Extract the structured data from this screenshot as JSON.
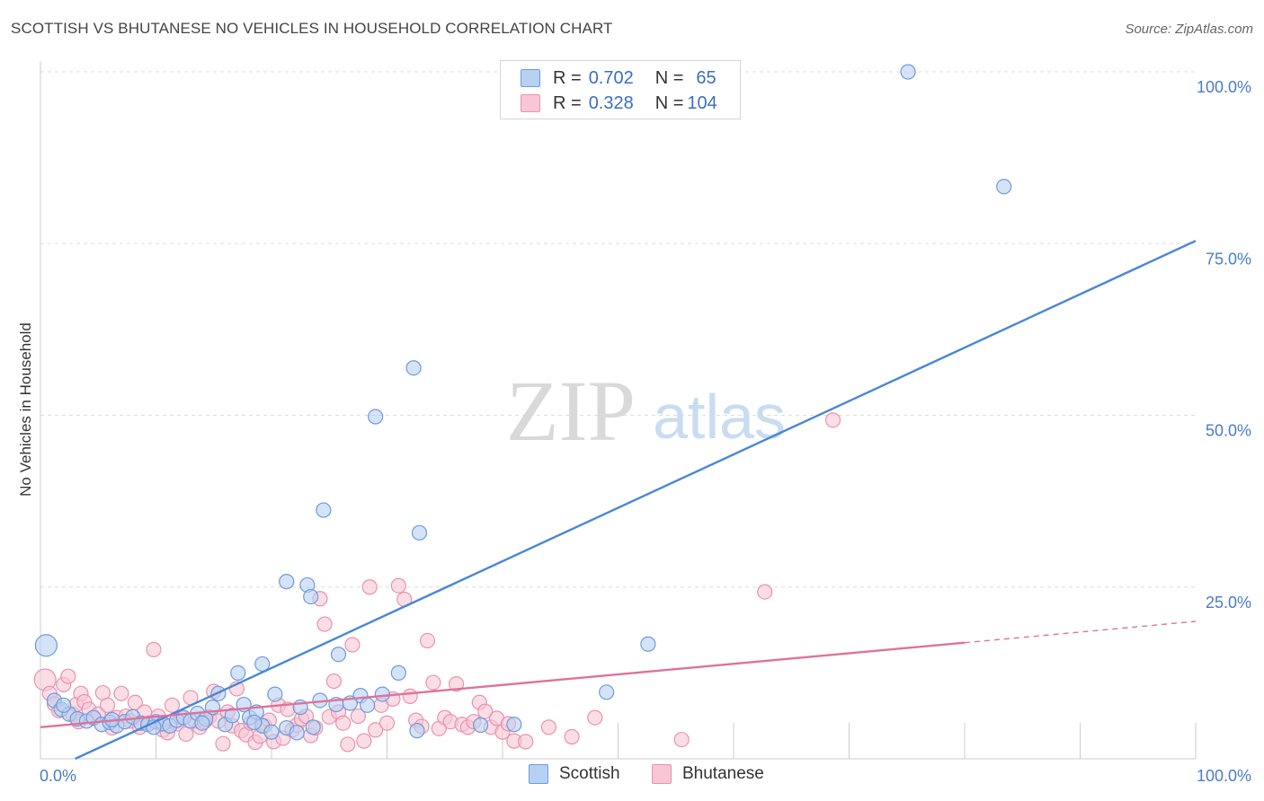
{
  "title": "SCOTTISH VS BHUTANESE NO VEHICLES IN HOUSEHOLD CORRELATION CHART",
  "source": "Source: ZipAtlas.com",
  "watermark": {
    "zip": "ZIP",
    "atlas": "atlas"
  },
  "legend": {
    "r_label": "R =",
    "n_label": "N =",
    "rows": [
      {
        "name": "Scottish",
        "r": "0.702",
        "n": "65",
        "fill": "#b8d1f2",
        "stroke": "#6e9bdb"
      },
      {
        "name": "Bhutanese",
        "r": "0.328",
        "n": "104",
        "fill": "#f8c6d5",
        "stroke": "#e893ae"
      }
    ]
  },
  "chart_data": {
    "type": "scatter",
    "title": "SCOTTISH VS BHUTANESE NO VEHICLES IN HOUSEHOLD CORRELATION CHART",
    "xlabel": "",
    "ylabel": "No Vehicles in Household",
    "xlim": [
      0,
      100
    ],
    "ylim": [
      0,
      100
    ],
    "x_tick_labels": [
      {
        "value": 0,
        "label": "0.0%"
      },
      {
        "value": 100,
        "label": "100.0%"
      }
    ],
    "y_tick_labels": [
      {
        "value": 100,
        "label": "100.0%"
      },
      {
        "value": 75,
        "label": "75.0%"
      },
      {
        "value": 50,
        "label": "50.0%"
      },
      {
        "value": 25,
        "label": "25.0%"
      }
    ],
    "series": [
      {
        "name": "Scottish",
        "color": "#4a86d8",
        "fill": "#b8d1f2",
        "regression": {
          "x0": 3,
          "y0": 0,
          "x1": 100,
          "y1": 75.4,
          "dashed_to": null
        },
        "points": [
          [
            0.5,
            16.5
          ],
          [
            1.2,
            8.5
          ],
          [
            1.8,
            7.2
          ],
          [
            2.5,
            6.5
          ],
          [
            3.2,
            5.8
          ],
          [
            4.0,
            5.5
          ],
          [
            4.6,
            6.0
          ],
          [
            5.3,
            5.0
          ],
          [
            6.0,
            5.3
          ],
          [
            6.6,
            4.8
          ],
          [
            7.3,
            5.4
          ],
          [
            8.0,
            6.1
          ],
          [
            8.7,
            5.2
          ],
          [
            9.3,
            5.0
          ],
          [
            10.0,
            5.4
          ],
          [
            10.6,
            5.1
          ],
          [
            11.2,
            4.8
          ],
          [
            11.8,
            5.6
          ],
          [
            12.4,
            6.0
          ],
          [
            13.0,
            5.5
          ],
          [
            13.6,
            6.6
          ],
          [
            14.3,
            5.8
          ],
          [
            14.9,
            7.5
          ],
          [
            15.4,
            9.5
          ],
          [
            16.0,
            5.0
          ],
          [
            16.6,
            6.3
          ],
          [
            17.1,
            12.5
          ],
          [
            17.6,
            7.9
          ],
          [
            18.1,
            6.0
          ],
          [
            18.7,
            6.8
          ],
          [
            19.2,
            4.8
          ],
          [
            19.2,
            13.8
          ],
          [
            20.0,
            3.9
          ],
          [
            20.3,
            9.4
          ],
          [
            21.3,
            4.5
          ],
          [
            21.3,
            25.8
          ],
          [
            22.2,
            3.8
          ],
          [
            22.5,
            7.5
          ],
          [
            23.1,
            25.3
          ],
          [
            23.4,
            23.6
          ],
          [
            23.6,
            4.6
          ],
          [
            24.2,
            8.5
          ],
          [
            24.5,
            36.2
          ],
          [
            25.6,
            7.9
          ],
          [
            25.8,
            15.2
          ],
          [
            27.7,
            9.2
          ],
          [
            28.3,
            7.8
          ],
          [
            29.0,
            49.8
          ],
          [
            29.6,
            9.4
          ],
          [
            31.0,
            12.5
          ],
          [
            32.3,
            56.9
          ],
          [
            32.6,
            4.1
          ],
          [
            32.8,
            32.9
          ],
          [
            38.1,
            4.9
          ],
          [
            41.0,
            5.0
          ],
          [
            49.0,
            9.7
          ],
          [
            52.6,
            16.7
          ],
          [
            75.1,
            100
          ],
          [
            83.4,
            83.3
          ],
          [
            2.0,
            7.8
          ],
          [
            6.2,
            5.7
          ],
          [
            9.8,
            4.6
          ],
          [
            14.0,
            5.2
          ],
          [
            18.5,
            5.3
          ],
          [
            26.8,
            8.1
          ]
        ]
      },
      {
        "name": "Bhutanese",
        "color": "#e0719a",
        "fill": "#f8c6d5",
        "regression": {
          "x0": 0,
          "y0": 4.6,
          "x1": 80,
          "y1": 16.9,
          "dashed_to": [
            100,
            20.0
          ]
        },
        "points": [
          [
            0.4,
            11.5
          ],
          [
            0.8,
            9.5
          ],
          [
            1.2,
            8.0
          ],
          [
            1.6,
            7.0
          ],
          [
            2.0,
            10.8
          ],
          [
            2.4,
            12.0
          ],
          [
            2.8,
            6.5
          ],
          [
            3.1,
            7.9
          ],
          [
            3.5,
            9.5
          ],
          [
            3.8,
            8.3
          ],
          [
            4.2,
            7.2
          ],
          [
            4.6,
            5.9
          ],
          [
            5.0,
            6.5
          ],
          [
            5.4,
            9.6
          ],
          [
            5.8,
            7.8
          ],
          [
            6.2,
            4.5
          ],
          [
            6.6,
            6.0
          ],
          [
            7.0,
            9.5
          ],
          [
            7.4,
            6.2
          ],
          [
            7.8,
            5.5
          ],
          [
            8.2,
            8.2
          ],
          [
            8.6,
            4.6
          ],
          [
            9.0,
            6.8
          ],
          [
            9.4,
            5.2
          ],
          [
            9.8,
            15.9
          ],
          [
            10.2,
            6.2
          ],
          [
            10.6,
            4.2
          ],
          [
            11.0,
            3.8
          ],
          [
            11.4,
            7.8
          ],
          [
            11.8,
            5.1
          ],
          [
            12.2,
            6.0
          ],
          [
            12.6,
            3.6
          ],
          [
            13.0,
            8.9
          ],
          [
            13.4,
            5.5
          ],
          [
            13.8,
            4.6
          ],
          [
            14.2,
            5.4
          ],
          [
            14.6,
            6.1
          ],
          [
            15.0,
            9.8
          ],
          [
            15.4,
            5.5
          ],
          [
            15.8,
            2.2
          ],
          [
            16.2,
            6.8
          ],
          [
            16.6,
            4.8
          ],
          [
            17.0,
            10.2
          ],
          [
            17.4,
            4.1
          ],
          [
            17.8,
            3.5
          ],
          [
            18.2,
            5.2
          ],
          [
            18.6,
            2.4
          ],
          [
            19.0,
            3.3
          ],
          [
            19.4,
            4.8
          ],
          [
            19.8,
            5.6
          ],
          [
            20.2,
            2.5
          ],
          [
            20.6,
            7.8
          ],
          [
            21.0,
            3.0
          ],
          [
            21.4,
            7.2
          ],
          [
            21.8,
            4.2
          ],
          [
            22.2,
            4.9
          ],
          [
            22.6,
            5.8
          ],
          [
            23.0,
            6.2
          ],
          [
            23.4,
            3.4
          ],
          [
            23.8,
            4.5
          ],
          [
            24.2,
            23.3
          ],
          [
            24.6,
            19.6
          ],
          [
            25.0,
            6.1
          ],
          [
            25.4,
            11.3
          ],
          [
            25.8,
            6.8
          ],
          [
            26.2,
            5.2
          ],
          [
            26.6,
            2.1
          ],
          [
            27.0,
            16.6
          ],
          [
            27.5,
            6.2
          ],
          [
            28.0,
            2.6
          ],
          [
            28.5,
            25.0
          ],
          [
            29.0,
            4.2
          ],
          [
            29.5,
            7.8
          ],
          [
            30.0,
            5.2
          ],
          [
            30.5,
            8.7
          ],
          [
            31.0,
            25.2
          ],
          [
            31.5,
            23.2
          ],
          [
            32.0,
            9.1
          ],
          [
            32.5,
            5.6
          ],
          [
            33.0,
            4.7
          ],
          [
            33.5,
            17.2
          ],
          [
            34.0,
            11.1
          ],
          [
            34.5,
            4.4
          ],
          [
            35.0,
            6.0
          ],
          [
            35.5,
            5.4
          ],
          [
            36.0,
            10.9
          ],
          [
            36.5,
            5.0
          ],
          [
            37.0,
            4.6
          ],
          [
            37.5,
            5.4
          ],
          [
            38.0,
            8.2
          ],
          [
            38.5,
            6.9
          ],
          [
            39.0,
            4.6
          ],
          [
            39.5,
            5.9
          ],
          [
            40.0,
            3.9
          ],
          [
            40.5,
            5.1
          ],
          [
            41.0,
            2.6
          ],
          [
            42.0,
            2.5
          ],
          [
            44.0,
            4.6
          ],
          [
            46.0,
            3.2
          ],
          [
            48.0,
            6.0
          ],
          [
            55.5,
            2.8
          ],
          [
            62.7,
            24.3
          ],
          [
            68.6,
            49.3
          ],
          [
            3.3,
            5.4
          ]
        ]
      }
    ]
  }
}
